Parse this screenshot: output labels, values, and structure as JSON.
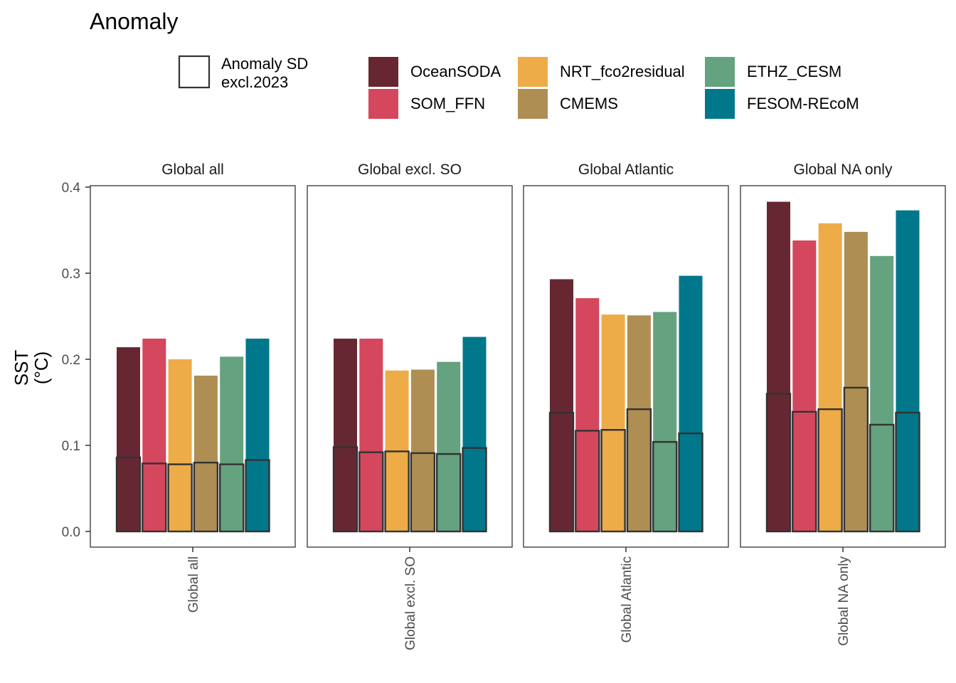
{
  "chart_data": {
    "type": "bar",
    "title": "Anomaly",
    "ylabel": "SST",
    "ylabel_unit": "(°C)",
    "ylim": [
      0,
      0.4
    ],
    "yticks": [
      "0.0",
      "0.1",
      "0.2",
      "0.3",
      "0.4"
    ],
    "panels": [
      "Global all",
      "Global excl. SO",
      "Global Atlantic",
      "Global NA only"
    ],
    "products": [
      "OceanSODA",
      "SOM_FFN",
      "NRT_fco2residual",
      "CMEMS",
      "ETHZ_CESM",
      "FESOM-REcoM"
    ],
    "colors": {
      "OceanSODA": "#662733",
      "SOM_FFN": "#D4475D",
      "NRT_fco2residual": "#EDAC48",
      "CMEMS": "#AE8E53",
      "ETHZ_CESM": "#65A27F",
      "FESOM-REcoM": "#00778A"
    },
    "sd_legend_label": "Anomaly SD excl.2023",
    "series": [
      {
        "name": "Global all",
        "anomaly": [
          0.214,
          0.224,
          0.2,
          0.181,
          0.203,
          0.224
        ],
        "sd": [
          0.086,
          0.079,
          0.078,
          0.08,
          0.078,
          0.083
        ]
      },
      {
        "name": "Global excl. SO",
        "anomaly": [
          0.224,
          0.224,
          0.187,
          0.188,
          0.197,
          0.226
        ],
        "sd": [
          0.098,
          0.092,
          0.093,
          0.091,
          0.09,
          0.097
        ]
      },
      {
        "name": "Global Atlantic",
        "anomaly": [
          0.293,
          0.271,
          0.252,
          0.251,
          0.255,
          0.297
        ],
        "sd": [
          0.138,
          0.117,
          0.118,
          0.142,
          0.104,
          0.114
        ]
      },
      {
        "name": "Global NA only",
        "anomaly": [
          0.383,
          0.338,
          0.358,
          0.348,
          0.32,
          0.373
        ],
        "sd": [
          0.16,
          0.139,
          0.142,
          0.167,
          0.124,
          0.138
        ]
      }
    ]
  }
}
